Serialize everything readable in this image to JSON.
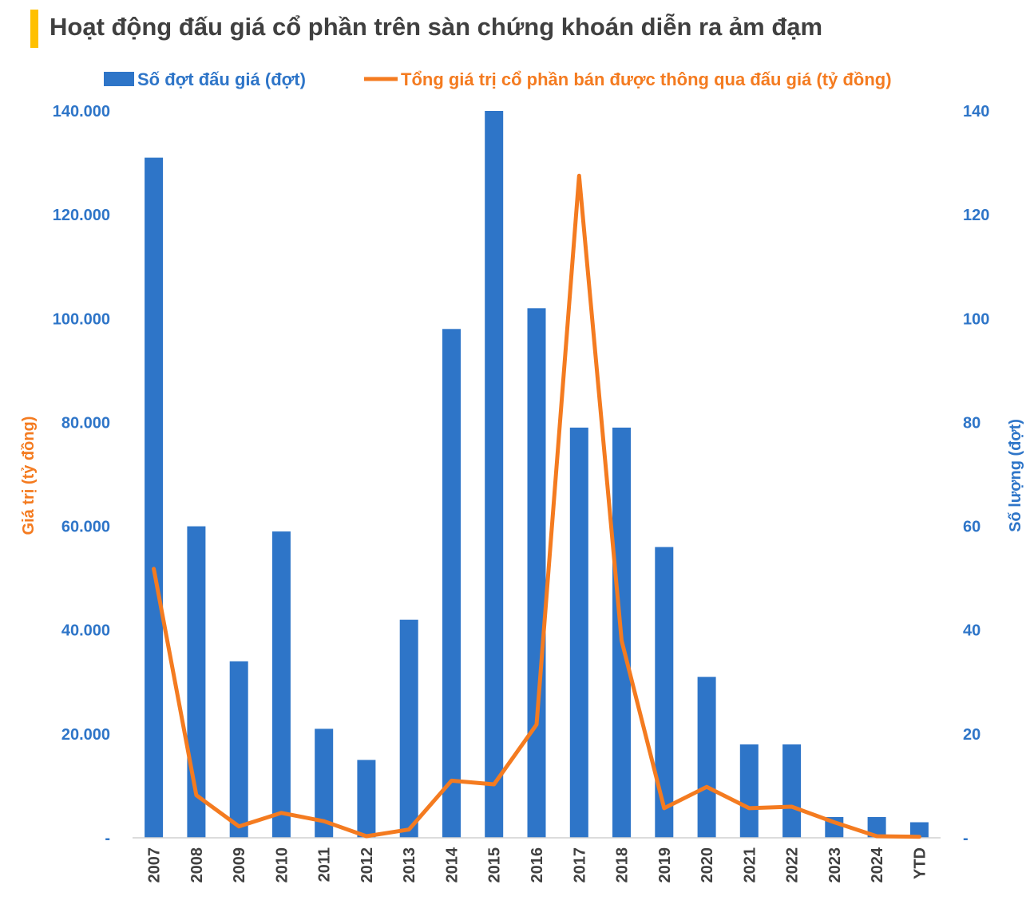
{
  "header": {
    "title": "Hoạt động đấu giá cổ phần trên sàn chứng khoán diễn ra ảm đạm"
  },
  "colors": {
    "bar": "#2E75C8",
    "line": "#F47B20",
    "title_accent": "#FFC000",
    "text": "#404040"
  },
  "chart_data": {
    "type": "bar",
    "title": "Hoạt động đấu giá cổ phần trên sàn chứng khoán diễn ra ảm đạm",
    "categories": [
      "2007",
      "2008",
      "2009",
      "2010",
      "2011",
      "2012",
      "2013",
      "2014",
      "2015",
      "2016",
      "2017",
      "2018",
      "2019",
      "2020",
      "2021",
      "2022",
      "2023",
      "2024",
      "YTD"
    ],
    "series": [
      {
        "name": "Số đợt đấu giá (đợt)",
        "type": "bar",
        "axis": "right",
        "values": [
          131,
          60,
          34,
          59,
          21,
          15,
          42,
          98,
          140,
          102,
          79,
          79,
          56,
          31,
          18,
          18,
          4,
          4,
          3
        ]
      },
      {
        "name": "Tổng giá trị cổ phần bán được thông qua đấu giá (tỷ đồng)",
        "type": "line",
        "axis": "left",
        "values": [
          51800,
          8200,
          2200,
          4800,
          3200,
          300,
          1600,
          11000,
          10300,
          21800,
          127500,
          38000,
          5700,
          9800,
          5700,
          6000,
          3000,
          300,
          200
        ]
      }
    ],
    "left_axis": {
      "label": "Giá trị (tỷ đồng)",
      "range": [
        0,
        140000
      ],
      "ticks": [
        "-",
        "20.000",
        "40.000",
        "60.000",
        "80.000",
        "100.000",
        "120.000",
        "140.000"
      ]
    },
    "right_axis": {
      "label": "Số lượng (đợt)",
      "range": [
        0,
        140
      ],
      "ticks": [
        "-",
        "20",
        "40",
        "60",
        "80",
        "100",
        "120",
        "140"
      ]
    },
    "grid": false,
    "legend_position": "top"
  }
}
